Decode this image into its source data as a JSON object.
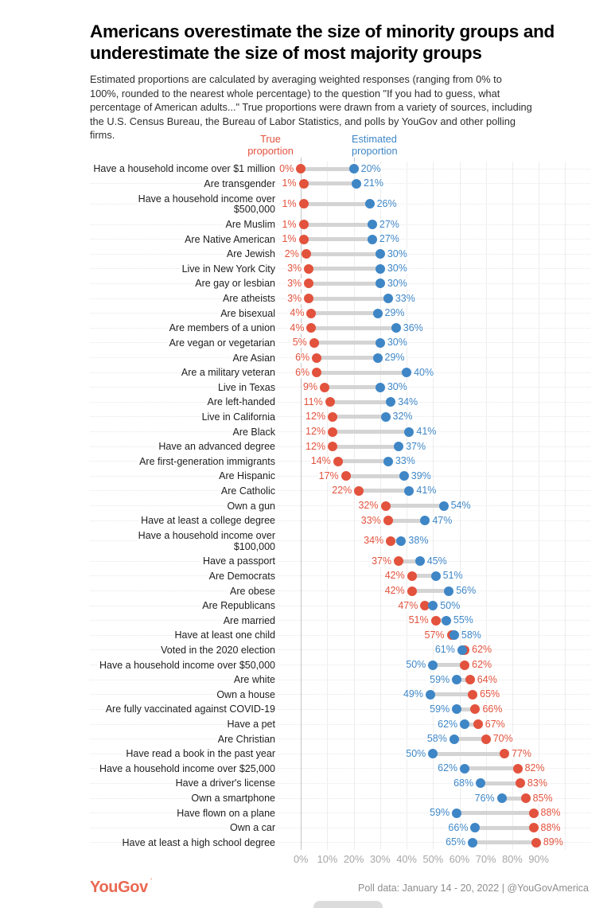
{
  "title": "Americans overestimate the size of minority groups and underestimate the size of most majority groups",
  "subtitle": "Estimated proportions are calculated by averaging weighted responses (ranging from 0% to 100%, rounded to the nearest whole percentage) to the question \"If you had to guess, what percentage of American adults...\" True proportions were drawn from a variety of sources, including the U.S. Census Bureau, the Bureau of Labor Statistics, and polls by YouGov and other polling firms.",
  "legend": {
    "true_label": "True proportion",
    "estimated_label": "Estimated proportion"
  },
  "colors": {
    "true": "#e2523d",
    "estimated": "#3e86c6",
    "connector": "#d4d4d4",
    "grid": "#ededed",
    "axis_line": "#c6c6c6",
    "tick_text": "#a6a6a6",
    "brand": "#ea6852"
  },
  "footer": {
    "brand": "YouGov",
    "note": "Poll data: January 14 - 20, 2022 | @YouGovAmerica"
  },
  "chart_data": {
    "type": "dumbbell",
    "title": "Americans overestimate the size of minority groups and underestimate the size of most majority groups",
    "x_axis": {
      "unit": "%",
      "min": 0,
      "max": 100,
      "ticks": [
        "0%",
        "10%",
        "20%",
        "30%",
        "40%",
        "50%",
        "60%",
        "70%",
        "80%",
        "90%"
      ]
    },
    "grid": true,
    "legend_position": "top",
    "series": [
      {
        "name": "True proportion",
        "color": "#e2523d"
      },
      {
        "name": "Estimated proportion",
        "color": "#3e86c6"
      }
    ],
    "rows": [
      {
        "label": "Have a household income over $1 million",
        "true_pct": 0,
        "estimated_pct": 20
      },
      {
        "label": "Are transgender",
        "true_pct": 1,
        "estimated_pct": 21
      },
      {
        "label": "Have a household income over $500,000",
        "true_pct": 1,
        "estimated_pct": 26
      },
      {
        "label": "Are Muslim",
        "true_pct": 1,
        "estimated_pct": 27
      },
      {
        "label": "Are Native American",
        "true_pct": 1,
        "estimated_pct": 27
      },
      {
        "label": "Are Jewish",
        "true_pct": 2,
        "estimated_pct": 30
      },
      {
        "label": "Live in New York City",
        "true_pct": 3,
        "estimated_pct": 30
      },
      {
        "label": "Are gay or lesbian",
        "true_pct": 3,
        "estimated_pct": 30
      },
      {
        "label": "Are atheists",
        "true_pct": 3,
        "estimated_pct": 33
      },
      {
        "label": "Are bisexual",
        "true_pct": 4,
        "estimated_pct": 29
      },
      {
        "label": "Are members of a union",
        "true_pct": 4,
        "estimated_pct": 36
      },
      {
        "label": "Are vegan or vegetarian",
        "true_pct": 5,
        "estimated_pct": 30
      },
      {
        "label": "Are Asian",
        "true_pct": 6,
        "estimated_pct": 29
      },
      {
        "label": "Are a military veteran",
        "true_pct": 6,
        "estimated_pct": 40
      },
      {
        "label": "Live in Texas",
        "true_pct": 9,
        "estimated_pct": 30
      },
      {
        "label": "Are left-handed",
        "true_pct": 11,
        "estimated_pct": 34
      },
      {
        "label": "Live in California",
        "true_pct": 12,
        "estimated_pct": 32
      },
      {
        "label": "Are Black",
        "true_pct": 12,
        "estimated_pct": 41
      },
      {
        "label": "Have an advanced degree",
        "true_pct": 12,
        "estimated_pct": 37
      },
      {
        "label": "Are first-generation immigrants",
        "true_pct": 14,
        "estimated_pct": 33
      },
      {
        "label": "Are Hispanic",
        "true_pct": 17,
        "estimated_pct": 39
      },
      {
        "label": "Are Catholic",
        "true_pct": 22,
        "estimated_pct": 41
      },
      {
        "label": "Own a gun",
        "true_pct": 32,
        "estimated_pct": 54
      },
      {
        "label": "Have at least a college degree",
        "true_pct": 33,
        "estimated_pct": 47
      },
      {
        "label": "Have a household income over $100,000",
        "true_pct": 34,
        "estimated_pct": 38
      },
      {
        "label": "Have a passport",
        "true_pct": 37,
        "estimated_pct": 45
      },
      {
        "label": "Are Democrats",
        "true_pct": 42,
        "estimated_pct": 51
      },
      {
        "label": "Are obese",
        "true_pct": 42,
        "estimated_pct": 56
      },
      {
        "label": "Are Republicans",
        "true_pct": 47,
        "estimated_pct": 50
      },
      {
        "label": "Are married",
        "true_pct": 51,
        "estimated_pct": 55
      },
      {
        "label": "Have at least one child",
        "true_pct": 57,
        "estimated_pct": 58
      },
      {
        "label": "Voted in the 2020 election",
        "true_pct": 62,
        "estimated_pct": 61
      },
      {
        "label": "Have a household income over $50,000",
        "true_pct": 62,
        "estimated_pct": 50
      },
      {
        "label": "Are white",
        "true_pct": 64,
        "estimated_pct": 59
      },
      {
        "label": "Own a house",
        "true_pct": 65,
        "estimated_pct": 49
      },
      {
        "label": "Are fully vaccinated against COVID-19",
        "true_pct": 66,
        "estimated_pct": 59
      },
      {
        "label": "Have a pet",
        "true_pct": 67,
        "estimated_pct": 62
      },
      {
        "label": "Are Christian",
        "true_pct": 70,
        "estimated_pct": 58
      },
      {
        "label": "Have read a book in the past year",
        "true_pct": 77,
        "estimated_pct": 50
      },
      {
        "label": "Have a household income over $25,000",
        "true_pct": 82,
        "estimated_pct": 62
      },
      {
        "label": "Have a driver's license",
        "true_pct": 83,
        "estimated_pct": 68
      },
      {
        "label": "Own a smartphone",
        "true_pct": 85,
        "estimated_pct": 76
      },
      {
        "label": "Have flown on a plane",
        "true_pct": 88,
        "estimated_pct": 59
      },
      {
        "label": "Own a car",
        "true_pct": 88,
        "estimated_pct": 66
      },
      {
        "label": "Have at least a high school degree",
        "true_pct": 89,
        "estimated_pct": 65
      }
    ]
  }
}
